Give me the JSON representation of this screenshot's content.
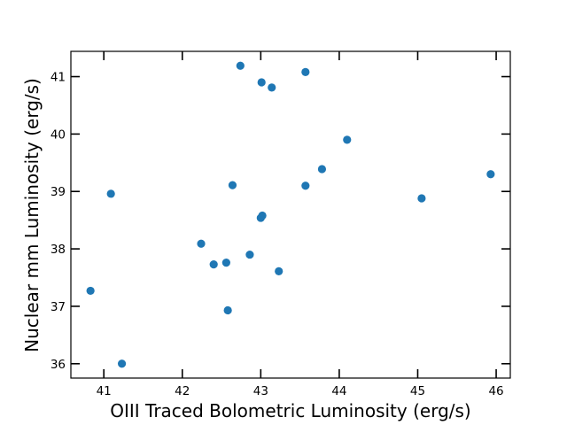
{
  "chart_data": {
    "type": "scatter",
    "title": "",
    "xlabel": "OIII Traced Bolometric Luminosity (erg/s)",
    "ylabel": "Nuclear mm Luminosity (erg/s)",
    "xlim": [
      40.58,
      46.18
    ],
    "ylim": [
      35.75,
      41.44
    ],
    "xticks": [
      41,
      42,
      43,
      44,
      45,
      46
    ],
    "yticks": [
      36,
      37,
      38,
      39,
      40,
      41
    ],
    "grid": false,
    "legend": "none",
    "marker_color": "#1f77b4",
    "points": [
      {
        "x": 40.83,
        "y": 37.27
      },
      {
        "x": 41.09,
        "y": 38.96
      },
      {
        "x": 41.23,
        "y": 36.0
      },
      {
        "x": 42.24,
        "y": 38.09
      },
      {
        "x": 42.4,
        "y": 37.73
      },
      {
        "x": 42.56,
        "y": 37.76
      },
      {
        "x": 42.58,
        "y": 36.93
      },
      {
        "x": 42.64,
        "y": 39.11
      },
      {
        "x": 42.74,
        "y": 41.19
      },
      {
        "x": 42.86,
        "y": 37.9
      },
      {
        "x": 43.0,
        "y": 38.54
      },
      {
        "x": 43.02,
        "y": 38.58
      },
      {
        "x": 43.01,
        "y": 40.9
      },
      {
        "x": 43.14,
        "y": 40.81
      },
      {
        "x": 43.23,
        "y": 37.61
      },
      {
        "x": 43.57,
        "y": 41.08
      },
      {
        "x": 43.57,
        "y": 39.1
      },
      {
        "x": 43.78,
        "y": 39.39
      },
      {
        "x": 44.1,
        "y": 39.9
      },
      {
        "x": 45.05,
        "y": 38.88
      },
      {
        "x": 45.93,
        "y": 39.3
      }
    ]
  }
}
